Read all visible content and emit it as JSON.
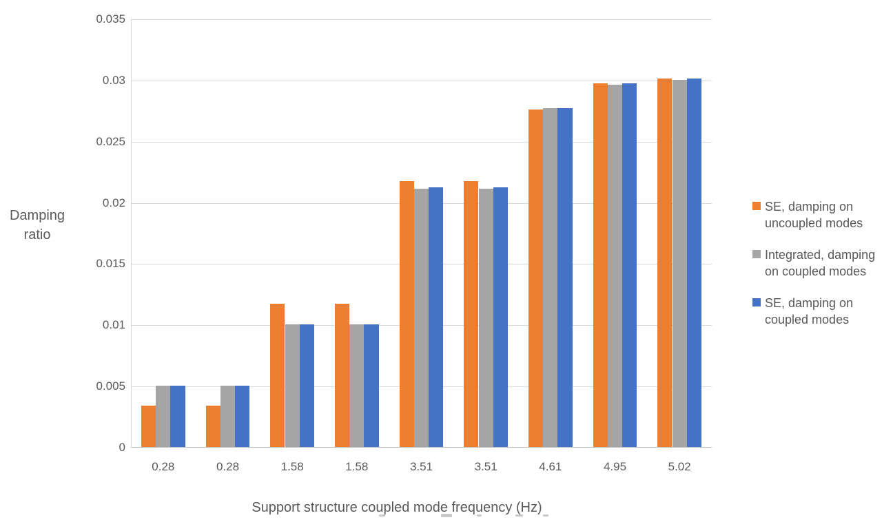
{
  "chart_data": {
    "type": "bar",
    "title": "",
    "xlabel": "Support structure coupled mode frequency (Hz)",
    "ylabel": "Damping ratio",
    "ylabel_lines": [
      "Damping",
      "ratio"
    ],
    "categories": [
      "0.28",
      "0.28",
      "1.58",
      "1.58",
      "3.51",
      "3.51",
      "4.61",
      "4.95",
      "5.02"
    ],
    "series": [
      {
        "name": "SE, damping on uncoupled modes",
        "legend_lines": [
          "SE, damping on",
          "uncoupled modes"
        ],
        "color": "#ED7D31",
        "values": [
          0.0034,
          0.0034,
          0.0117,
          0.0117,
          0.0217,
          0.0217,
          0.0276,
          0.0297,
          0.0301
        ]
      },
      {
        "name": "Integrated, damping on coupled modes",
        "legend_lines": [
          "Integrated, damping",
          "on coupled modes"
        ],
        "color": "#A5A5A5",
        "values": [
          0.005,
          0.005,
          0.01,
          0.01,
          0.0211,
          0.0211,
          0.0277,
          0.0296,
          0.03
        ]
      },
      {
        "name": "SE, damping on coupled modes",
        "legend_lines": [
          "SE, damping on",
          "coupled modes"
        ],
        "color": "#4472C4",
        "values": [
          0.005,
          0.005,
          0.01,
          0.01,
          0.0212,
          0.0212,
          0.0277,
          0.0297,
          0.0301
        ]
      }
    ],
    "ylim": [
      0,
      0.035
    ],
    "ytick_step": 0.005,
    "ytick_labels": [
      "0",
      "0.005",
      "0.01",
      "0.015",
      "0.02",
      "0.025",
      "0.03",
      "0.035"
    ],
    "grid": true,
    "legend_position": "right",
    "colors": {
      "text": "#595959",
      "gridline": "#D9D9D9",
      "axis_line": "#BFBFBF",
      "background": "#FFFFFF"
    }
  }
}
